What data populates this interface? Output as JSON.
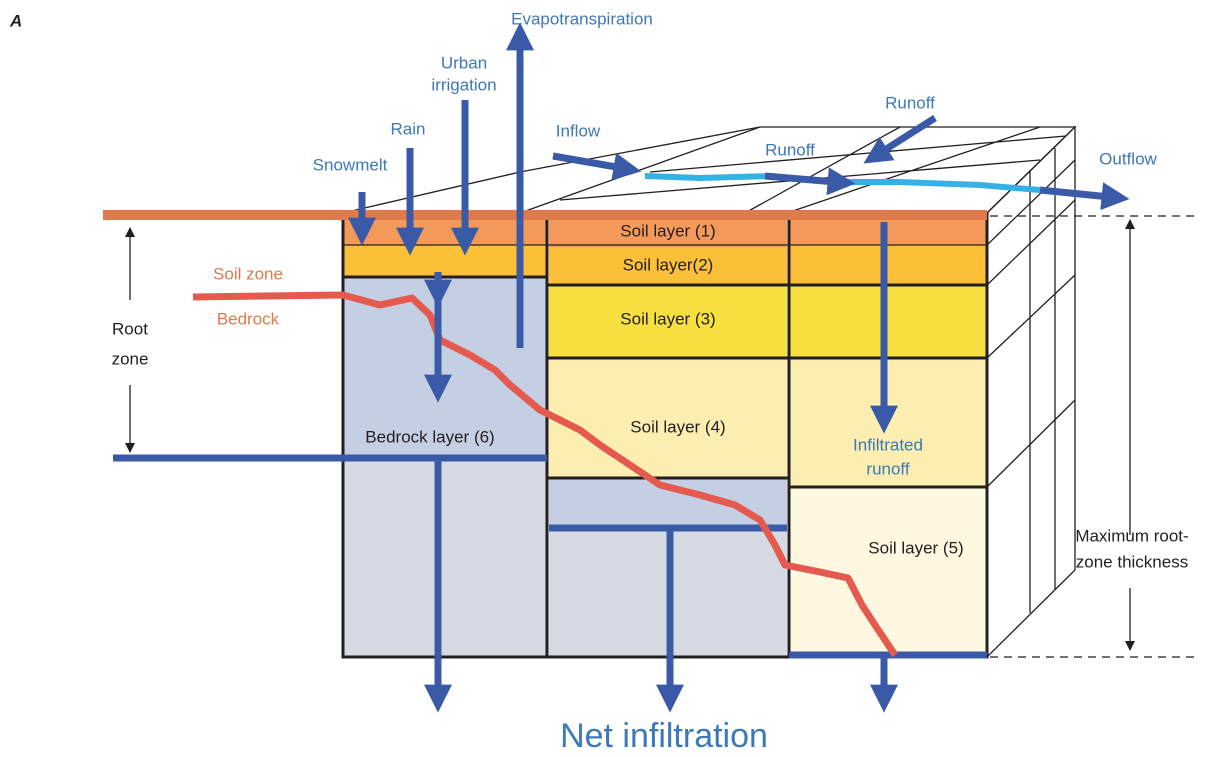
{
  "panel_label": "A",
  "fluxes": {
    "evapotranspiration": "Evapotranspiration",
    "urban_irrigation": [
      "Urban",
      "irrigation"
    ],
    "rain": "Rain",
    "snowmelt": "Snowmelt",
    "inflow": "Inflow",
    "runoff_upper": "Runoff",
    "runoff_lower": "Runoff",
    "outflow": "Outflow",
    "infiltrated_runoff": [
      "Infiltrated",
      "runoff"
    ],
    "net_infiltration": "Net infiltration"
  },
  "layers": [
    "Soil layer (1)",
    "Soil layer(2)",
    "Soil layer (3)",
    "Soil layer (4)",
    "Soil layer (5)",
    "Bedrock layer (6)"
  ],
  "zones": {
    "soil_zone": "Soil zone",
    "bedrock": "Bedrock",
    "root_zone": [
      "Root",
      "zone"
    ],
    "max_root_zone": [
      "Maximum root-",
      "zone thickness"
    ]
  }
}
